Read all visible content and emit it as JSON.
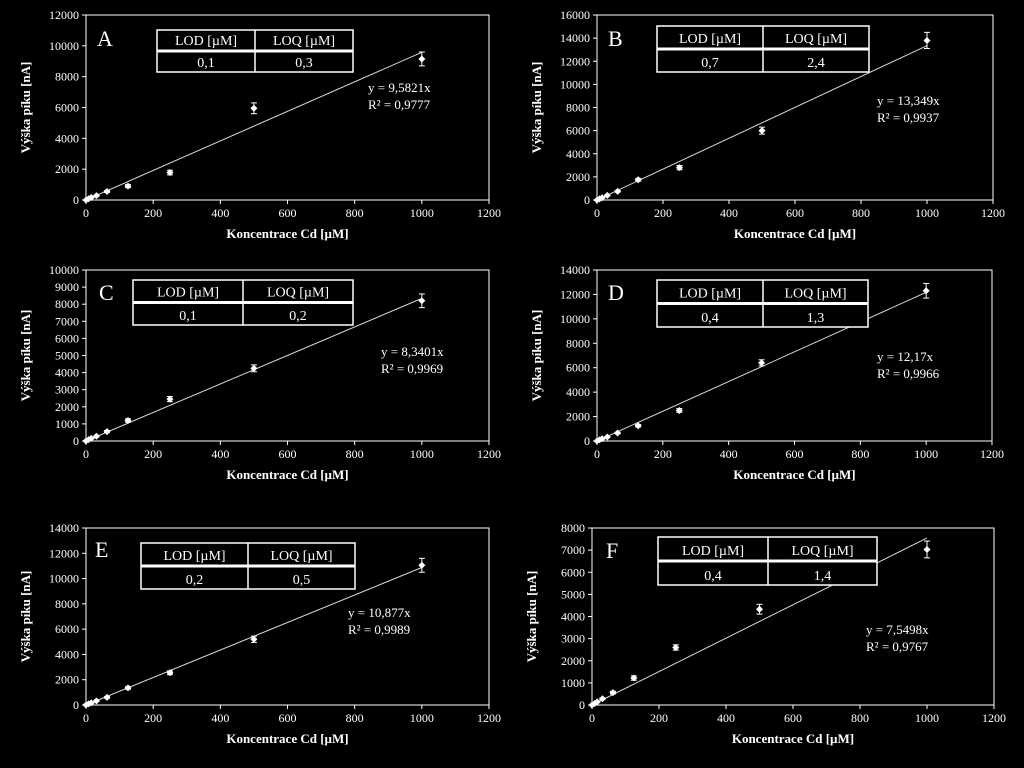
{
  "chart_data": [
    {
      "panel": "A",
      "type": "scatter",
      "xlabel": "Koncentrace Cd [µM]",
      "ylabel": "Výška píku [nA]",
      "xlim": [
        0,
        1200
      ],
      "ylim": [
        0,
        12000
      ],
      "xticks": [
        0,
        200,
        400,
        600,
        800,
        1000,
        1200
      ],
      "yticks": [
        0,
        2000,
        4000,
        6000,
        8000,
        10000,
        12000
      ],
      "x": [
        0,
        7.8,
        15.6,
        31.2,
        62.5,
        125,
        250,
        500,
        1000
      ],
      "y": [
        0,
        80,
        160,
        280,
        550,
        900,
        1780,
        5950,
        9150
      ],
      "err": [
        0,
        20,
        30,
        40,
        60,
        100,
        150,
        350,
        450
      ],
      "slope": 9.5821,
      "equation": "y = 9,5821x",
      "r2": "R² = 0,9777",
      "table": {
        "headers": [
          "LOD [µM]",
          "LOQ [µM]"
        ],
        "values": [
          "0,1",
          "0,3"
        ]
      }
    },
    {
      "panel": "B",
      "type": "scatter",
      "xlabel": "Koncentrace Cd [µM]",
      "ylabel": "Výška píku [nA]",
      "xlim": [
        0,
        1200
      ],
      "ylim": [
        0,
        16000
      ],
      "xticks": [
        0,
        200,
        400,
        600,
        800,
        1000,
        1200
      ],
      "yticks": [
        0,
        2000,
        4000,
        6000,
        8000,
        10000,
        12000,
        14000,
        16000
      ],
      "x": [
        0,
        7.8,
        15.6,
        31.2,
        62.5,
        125,
        250,
        500,
        1000
      ],
      "y": [
        0,
        100,
        200,
        400,
        750,
        1750,
        2800,
        6000,
        13800
      ],
      "err": [
        0,
        20,
        30,
        50,
        70,
        120,
        180,
        300,
        700
      ],
      "slope": 13.349,
      "equation": "y = 13,349x",
      "r2": "R² = 0,9937",
      "table": {
        "headers": [
          "LOD [µM]",
          "LOQ [µM]"
        ],
        "values": [
          "0,7",
          "2,4"
        ]
      }
    },
    {
      "panel": "C",
      "type": "scatter",
      "xlabel": "Koncentrace Cd [µM]",
      "ylabel": "Výška píku [nA]",
      "xlim": [
        0,
        1200
      ],
      "ylim": [
        0,
        10000
      ],
      "xticks": [
        0,
        200,
        400,
        600,
        800,
        1000,
        1200
      ],
      "yticks": [
        0,
        1000,
        2000,
        3000,
        4000,
        5000,
        6000,
        7000,
        8000,
        9000,
        10000
      ],
      "x": [
        0,
        7.8,
        15.6,
        31.2,
        62.5,
        125,
        250,
        500,
        1000
      ],
      "y": [
        0,
        80,
        150,
        280,
        550,
        1200,
        2450,
        4250,
        8200
      ],
      "err": [
        0,
        20,
        30,
        40,
        60,
        100,
        150,
        200,
        400
      ],
      "slope": 8.3401,
      "equation": "y = 8,3401x",
      "r2": "R² = 0,9969",
      "table": {
        "headers": [
          "LOD [µM]",
          "LOQ [µM]"
        ],
        "values": [
          "0,1",
          "0,2"
        ]
      }
    },
    {
      "panel": "D",
      "type": "scatter",
      "xlabel": "Koncentrace Cd [µM]",
      "ylabel": "Výška píku [nA]",
      "xlim": [
        0,
        1200
      ],
      "ylim": [
        0,
        14000
      ],
      "xticks": [
        0,
        200,
        400,
        600,
        800,
        1000,
        1200
      ],
      "yticks": [
        0,
        2000,
        4000,
        6000,
        8000,
        10000,
        12000,
        14000
      ],
      "x": [
        0,
        7.8,
        15.6,
        31.2,
        62.5,
        125,
        250,
        500,
        1000
      ],
      "y": [
        0,
        100,
        180,
        330,
        650,
        1250,
        2500,
        6400,
        12300
      ],
      "err": [
        0,
        20,
        30,
        40,
        60,
        100,
        150,
        250,
        600
      ],
      "slope": 12.17,
      "equation": "y = 12,17x",
      "r2": "R² = 0,9966",
      "table": {
        "headers": [
          "LOD [µM]",
          "LOQ [µM]"
        ],
        "values": [
          "0,4",
          "1,3"
        ]
      }
    },
    {
      "panel": "E",
      "type": "scatter",
      "xlabel": "Koncentrace Cd [µM]",
      "ylabel": "Výška píku [nA]",
      "xlim": [
        0,
        1200
      ],
      "ylim": [
        0,
        14000
      ],
      "xticks": [
        0,
        200,
        400,
        600,
        800,
        1000,
        1200
      ],
      "yticks": [
        0,
        2000,
        4000,
        6000,
        8000,
        10000,
        12000,
        14000
      ],
      "x": [
        0,
        7.8,
        15.6,
        31.2,
        62.5,
        125,
        250,
        500,
        1000
      ],
      "y": [
        0,
        90,
        170,
        330,
        600,
        1350,
        2550,
        5200,
        11050
      ],
      "err": [
        0,
        20,
        30,
        40,
        60,
        100,
        150,
        250,
        550
      ],
      "slope": 10.877,
      "equation": "y = 10,877x",
      "r2": "R² = 0,9989",
      "table": {
        "headers": [
          "LOD [µM]",
          "LOQ [µM]"
        ],
        "values": [
          "0,2",
          "0,5"
        ]
      }
    },
    {
      "panel": "F",
      "type": "scatter",
      "xlabel": "Koncentrace Cd [µM]",
      "ylabel": "Výška píku [nA]",
      "xlim": [
        0,
        1200
      ],
      "ylim": [
        0,
        8000
      ],
      "xticks": [
        0,
        200,
        400,
        600,
        800,
        1000,
        1200
      ],
      "yticks": [
        0,
        1000,
        2000,
        3000,
        4000,
        5000,
        6000,
        7000,
        8000
      ],
      "x": [
        0,
        7.8,
        15.6,
        31.2,
        62.5,
        125,
        250,
        500,
        1000
      ],
      "y": [
        0,
        70,
        140,
        280,
        560,
        1220,
        2600,
        4330,
        7030
      ],
      "err": [
        0,
        20,
        30,
        40,
        60,
        100,
        120,
        220,
        380
      ],
      "slope": 7.5498,
      "equation": "y = 7,5498x",
      "r2": "R² = 0,9767",
      "table": {
        "headers": [
          "LOD [µM]",
          "LOQ [µM]"
        ],
        "values": [
          "0,4",
          "1,4"
        ]
      }
    }
  ],
  "colors": {
    "background": "#000000",
    "foreground": "#ffffff",
    "plot_area": "#000000"
  }
}
